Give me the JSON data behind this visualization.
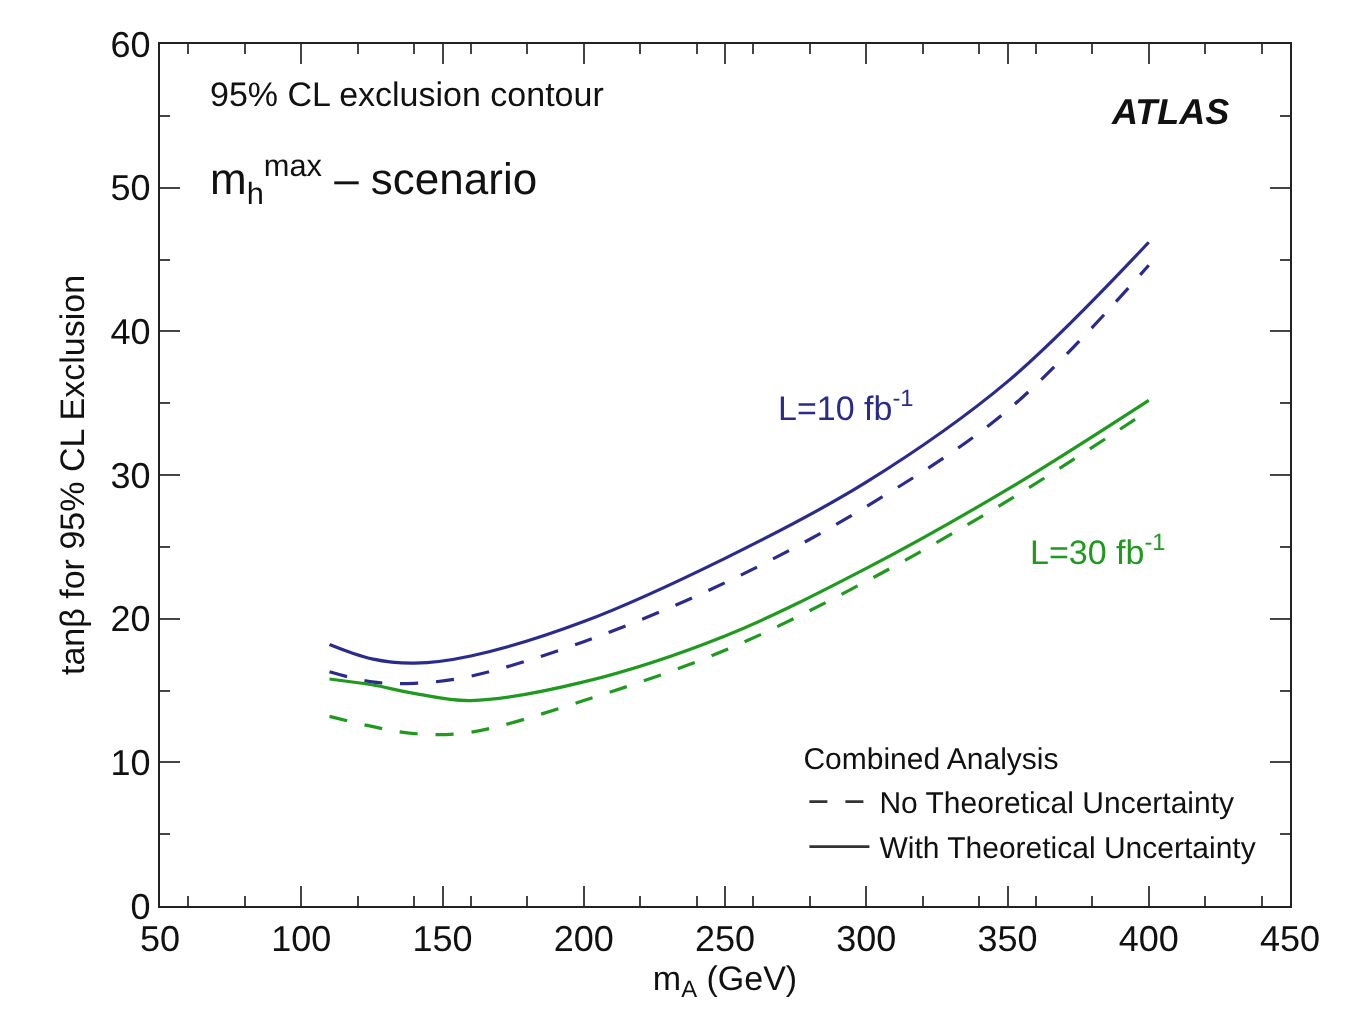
{
  "chart_data": {
    "type": "line",
    "xlabel": "m$_{A}$ (GeV)",
    "ylabel": "tanβ for 95% CL Exclusion",
    "legend_title": "Combined Analysis",
    "legend": "bottom right",
    "marker": "none",
    "xlim": [
      50,
      450
    ],
    "xticks": [
      50,
      100,
      150,
      200,
      250,
      300,
      350,
      400,
      450
    ],
    "ylim": [
      0,
      60
    ],
    "yticks": [
      0,
      10,
      20,
      30,
      40,
      50,
      60
    ],
    "x": [
      110,
      125,
      140,
      160,
      200,
      250,
      300,
      350,
      400
    ],
    "series": [
      {
        "name": "L=10 fb$^{-1}$",
        "color": "#2b2b8c",
        "line_style": "solid",
        "values": [
          18.2,
          17.2,
          16.9,
          17.4,
          19.8,
          24.2,
          29.5,
          36.5,
          46.2
        ]
      },
      {
        "color": "#2b2b8c",
        "line_style": "dashed",
        "values": [
          16.3,
          15.6,
          15.5,
          16.0,
          18.4,
          22.5,
          27.8,
          34.5,
          44.6
        ]
      },
      {
        "name": "L=30 fb$^{-1}$",
        "color": "#1f9a1f",
        "line_style": "solid",
        "values": [
          15.8,
          15.4,
          14.8,
          14.3,
          15.6,
          18.8,
          23.5,
          29.0,
          35.2
        ]
      },
      {
        "color": "#1f9a1f",
        "line_style": "dashed",
        "values": [
          13.2,
          12.5,
          12.0,
          12.1,
          14.3,
          17.8,
          22.6,
          28.2,
          34.5
        ]
      }
    ],
    "annotations": [
      "95% CL exclusion contour",
      "m$_{h}$$^{max}$ – scenario",
      "ATLAS",
      "No Theoretical Uncertainty",
      "With Theoretical Uncertainty"
    ]
  }
}
